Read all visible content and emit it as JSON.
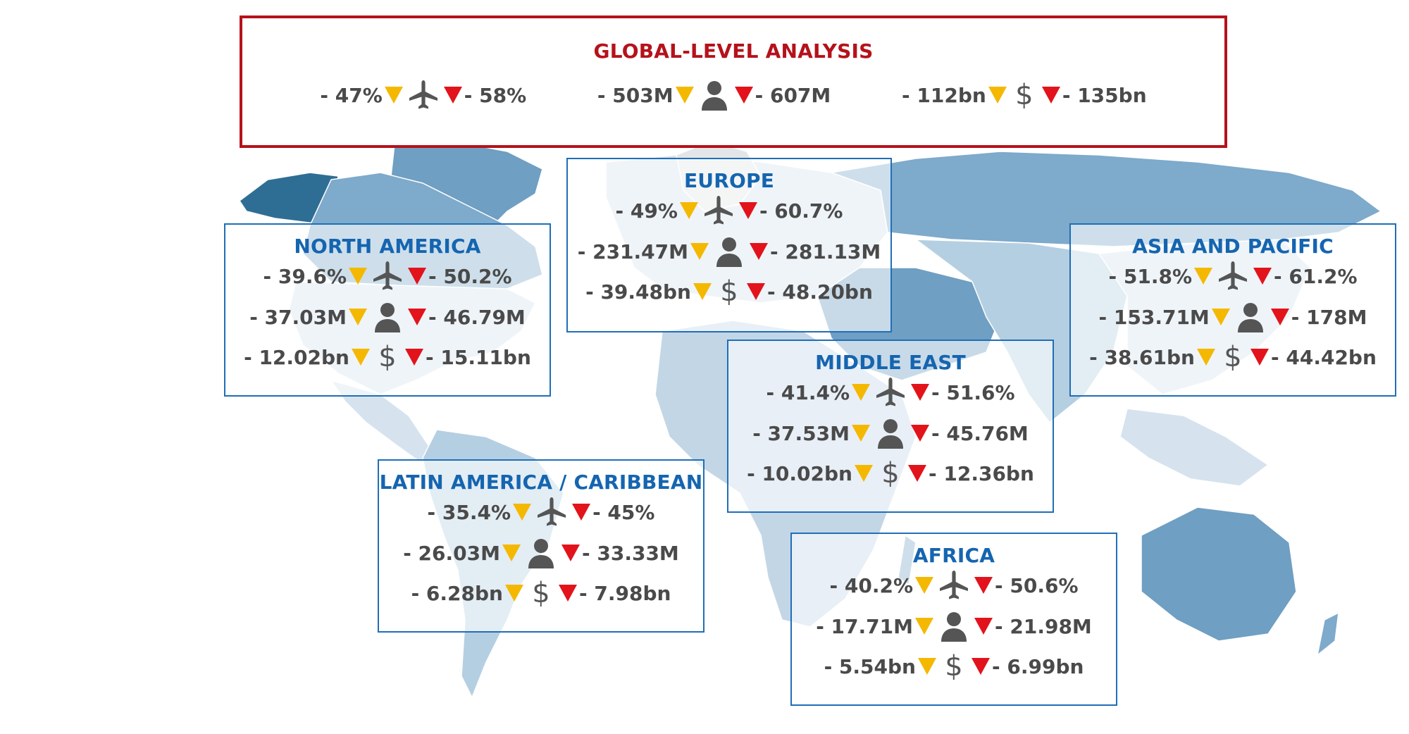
{
  "colors": {
    "ocean": "#ffffff",
    "land_light": "#d6e3ee",
    "land_mid": "#7eaacb",
    "land_dark": "#2f6e94",
    "grey_land": "#e3e6e8",
    "region_title": "#1565b0",
    "global_title": "#b5121b",
    "arrow_yellow": "#f5b800",
    "arrow_red": "#e2131b"
  },
  "icons": {
    "flights": "airplane-icon",
    "passengers": "person-icon",
    "revenue": "dollar-icon"
  },
  "global": {
    "title": "GLOBAL-LEVEL ANALYSIS",
    "flights": {
      "low": "- 47%",
      "high": "- 58%"
    },
    "passengers": {
      "low": "- 503M",
      "high": "- 607M"
    },
    "revenue": {
      "low": "- 112bn",
      "high": "- 135bn"
    }
  },
  "regions": {
    "north_america": {
      "title": "NORTH AMERICA",
      "flights": {
        "low": "- 39.6%",
        "high": "- 50.2%"
      },
      "passengers": {
        "low": "- 37.03M",
        "high": "- 46.79M"
      },
      "revenue": {
        "low": "- 12.02bn",
        "high": "- 15.11bn"
      }
    },
    "europe": {
      "title": "EUROPE",
      "flights": {
        "low": "- 49%",
        "high": "- 60.7%"
      },
      "passengers": {
        "low": "- 231.47M",
        "high": "- 281.13M"
      },
      "revenue": {
        "low": "- 39.48bn",
        "high": "- 48.20bn"
      }
    },
    "asia_pacific": {
      "title": "ASIA AND PACIFIC",
      "flights": {
        "low": "- 51.8%",
        "high": "- 61.2%"
      },
      "passengers": {
        "low": "- 153.71M",
        "high": "- 178M"
      },
      "revenue": {
        "low": "- 38.61bn",
        "high": "- 44.42bn"
      }
    },
    "middle_east": {
      "title": "MIDDLE EAST",
      "flights": {
        "low": "- 41.4%",
        "high": "- 51.6%"
      },
      "passengers": {
        "low": "- 37.53M",
        "high": "- 45.76M"
      },
      "revenue": {
        "low": "- 10.02bn",
        "high": "- 12.36bn"
      }
    },
    "latin_america": {
      "title": "LATIN AMERICA / CARIBBEAN",
      "flights": {
        "low": "- 35.4%",
        "high": "- 45%"
      },
      "passengers": {
        "low": "- 26.03M",
        "high": "- 33.33M"
      },
      "revenue": {
        "low": "- 6.28bn",
        "high": "- 7.98bn"
      }
    },
    "africa": {
      "title": "AFRICA",
      "flights": {
        "low": "- 40.2%",
        "high": "- 50.6%"
      },
      "passengers": {
        "low": "- 17.71M",
        "high": "- 21.98M"
      },
      "revenue": {
        "low": "- 5.54bn",
        "high": "- 6.99bn"
      }
    }
  }
}
